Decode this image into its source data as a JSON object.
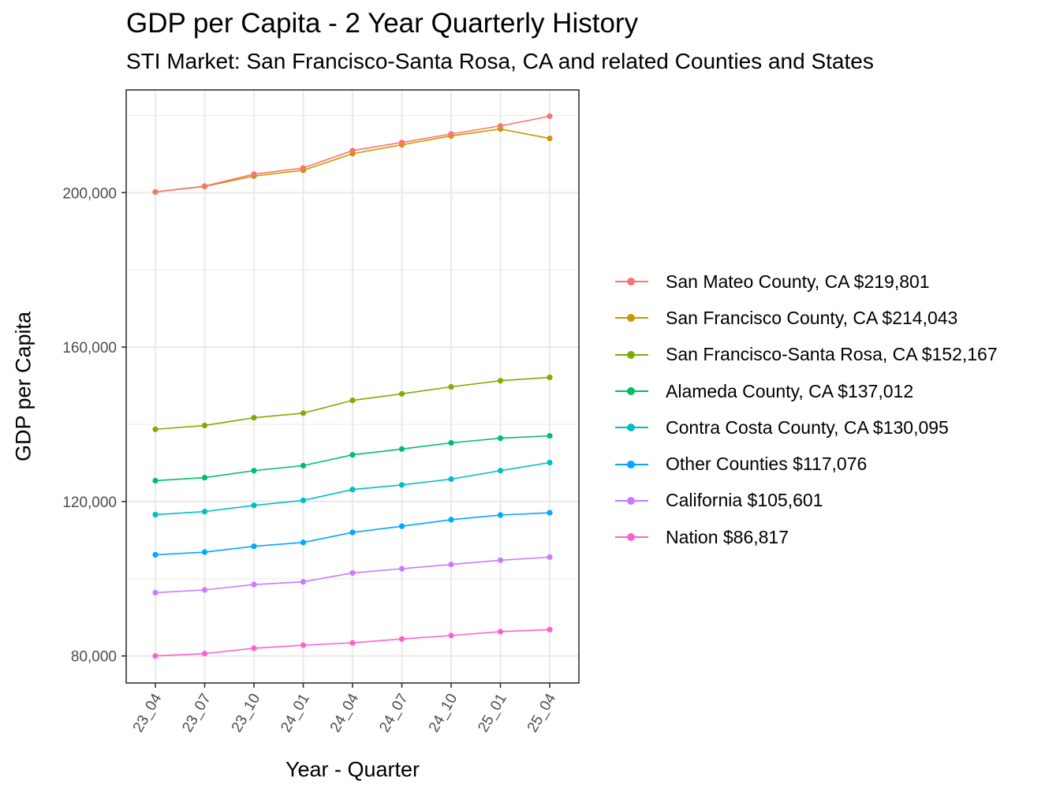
{
  "chart_data": {
    "type": "line",
    "title": "GDP per Capita - 2 Year Quarterly History",
    "subtitle": "STI Market: San Francisco-Santa Rosa, CA and related Counties and States",
    "xlabel": "Year - Quarter",
    "ylabel": "GDP per Capita",
    "x": [
      "23_04",
      "23_07",
      "23_10",
      "24_01",
      "24_04",
      "24_07",
      "24_10",
      "25_01",
      "25_04"
    ],
    "ylim": [
      73000,
      224000
    ],
    "yticks": [
      80000,
      120000,
      160000,
      200000
    ],
    "ytick_labels": [
      "80,000",
      "120,000",
      "160,000",
      "200,000"
    ],
    "grid": true,
    "legend_position": "right",
    "series": [
      {
        "name": "San Mateo County, CA $219,801",
        "color": "#F8766D",
        "values": [
          200200,
          201700,
          204800,
          206400,
          210900,
          213000,
          215200,
          217300,
          219801
        ]
      },
      {
        "name": "San Francisco County, CA $214,043",
        "color": "#CD9600",
        "values": [
          200200,
          201600,
          204300,
          205800,
          210100,
          212400,
          214700,
          216500,
          214043
        ]
      },
      {
        "name": "San Francisco-Santa Rosa, CA $152,167",
        "color": "#7CAE00",
        "values": [
          138700,
          139700,
          141700,
          142900,
          146200,
          147900,
          149700,
          151300,
          152167
        ]
      },
      {
        "name": "Alameda County, CA $137,012",
        "color": "#00BE67",
        "values": [
          125400,
          126200,
          128000,
          129300,
          132100,
          133600,
          135200,
          136400,
          137012
        ]
      },
      {
        "name": "Contra Costa County, CA $130,095",
        "color": "#00BFC4",
        "values": [
          116600,
          117400,
          119000,
          120300,
          123100,
          124300,
          125800,
          128000,
          130095
        ]
      },
      {
        "name": "Other Counties $117,076",
        "color": "#00A9FF",
        "values": [
          106200,
          106900,
          108400,
          109400,
          112000,
          113600,
          115300,
          116500,
          117076
        ]
      },
      {
        "name": "California $105,601",
        "color": "#C77CFF",
        "values": [
          96400,
          97100,
          98500,
          99200,
          101500,
          102600,
          103700,
          104800,
          105601
        ]
      },
      {
        "name": "Nation $86,817",
        "color": "#FF61CC",
        "values": [
          80000,
          80600,
          82000,
          82800,
          83400,
          84400,
          85300,
          86300,
          86817
        ]
      }
    ]
  }
}
